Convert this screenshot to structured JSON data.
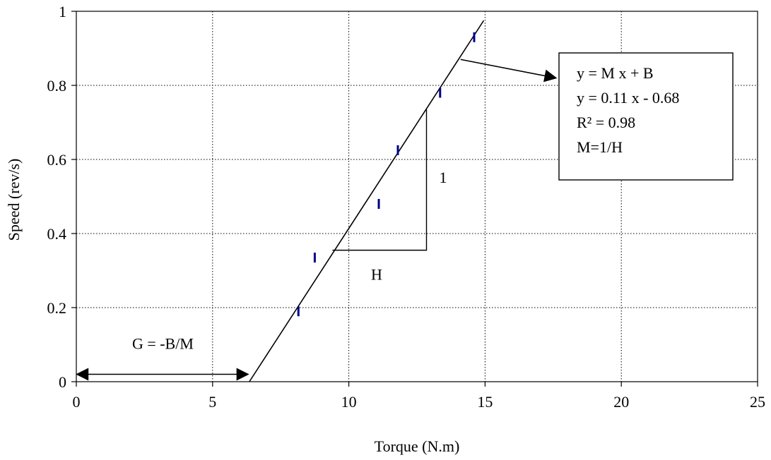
{
  "chart_data": {
    "type": "scatter",
    "title": "",
    "xlabel": "Torque (N.m)",
    "ylabel": "Speed (rev/s)",
    "xlim": [
      0,
      25
    ],
    "ylim": [
      0,
      1
    ],
    "x_ticks": [
      0,
      5,
      10,
      15,
      20,
      25
    ],
    "y_ticks": [
      0,
      0.2,
      0.4,
      0.6,
      0.8,
      1
    ],
    "x_tick_labels": [
      "0",
      "5",
      "10",
      "15",
      "20",
      "25"
    ],
    "y_tick_labels": [
      "0",
      "0.2",
      "0.4",
      "0.6",
      "0.8",
      "1"
    ],
    "grid": true,
    "grid_style": "dotted",
    "marker_color": "#00008B",
    "series": [
      {
        "points": [
          {
            "x": 8.15,
            "y": 0.19
          },
          {
            "x": 8.75,
            "y": 0.335
          },
          {
            "x": 11.1,
            "y": 0.48
          },
          {
            "x": 11.8,
            "y": 0.625
          },
          {
            "x": 13.35,
            "y": 0.78
          },
          {
            "x": 14.6,
            "y": 0.93
          }
        ]
      }
    ],
    "trendline": {
      "x_start": 6.35,
      "y_start": 0,
      "x_end": 14.95,
      "y_end": 0.975
    },
    "annotations": {
      "equation_box": [
        "y = M x + B",
        "y = 0.11 x - 0.68",
        "R² = 0.98",
        "M=1/H"
      ],
      "slope_rise_label": "1",
      "slope_run_label": "H",
      "intercept_label": "G = -B/M",
      "slope_triangle": {
        "x_left": 9.4,
        "x_right": 12.85,
        "y_bottom": 0.355,
        "y_top": 0.735
      },
      "intercept_arrow": {
        "x_start": 0,
        "x_end": 6.35,
        "y": 0.02
      },
      "pointer_arrow": {
        "from": {
          "x": 14.1,
          "y": 0.87
        },
        "to": {
          "x": 17.6,
          "y": 0.82
        }
      }
    }
  }
}
